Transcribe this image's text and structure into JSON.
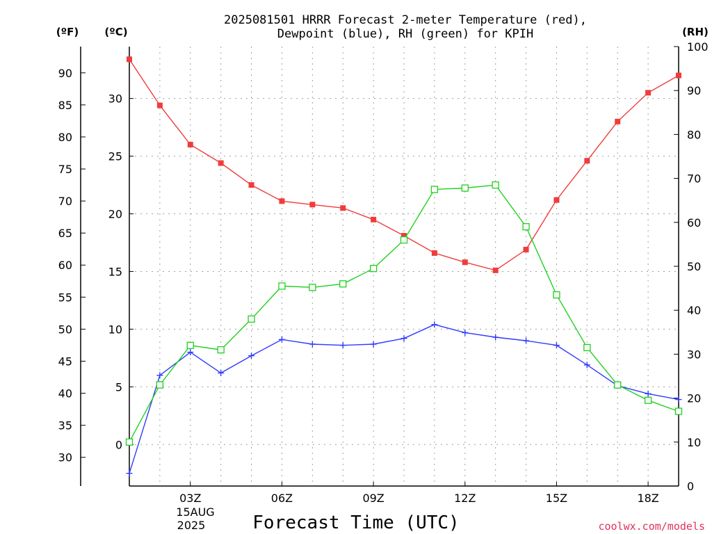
{
  "title": {
    "line1": "2025081501 HRRR Forecast 2-meter Temperature (red),",
    "line2": "Dewpoint (blue), RH (green) for KPIH"
  },
  "units": {
    "fahrenheit": "(ºF)",
    "celsius": "(ºC)",
    "rh": "(RH)"
  },
  "xlabel": "Forecast Time (UTC)",
  "date_label": {
    "day": "15AUG",
    "year": "2025"
  },
  "credit": "coolwx.com/models",
  "colors": {
    "temperature": "#f03c3c",
    "dewpoint": "#2f3bff",
    "rh": "#1fd01f",
    "axis": "#000000",
    "grid": "#a0a0a0"
  },
  "chart_data": {
    "type": "line",
    "x_hours": [
      1,
      2,
      3,
      4,
      5,
      6,
      7,
      8,
      9,
      10,
      11,
      12,
      13,
      14,
      15,
      16,
      17,
      18,
      19
    ],
    "xlim": [
      1,
      19
    ],
    "x_ticks": [
      {
        "hour": 3,
        "label": "03Z"
      },
      {
        "hour": 6,
        "label": "06Z"
      },
      {
        "hour": 9,
        "label": "09Z"
      },
      {
        "hour": 12,
        "label": "12Z"
      },
      {
        "hour": 15,
        "label": "15Z"
      },
      {
        "hour": 18,
        "label": "18Z"
      }
    ],
    "y_celsius": {
      "ylim": [
        -3.6,
        34.5
      ],
      "ticks": [
        0,
        5,
        10,
        15,
        20,
        25,
        30
      ]
    },
    "y_fahrenheit": {
      "ticks": [
        30,
        35,
        40,
        45,
        50,
        55,
        60,
        65,
        70,
        75,
        80,
        85,
        90
      ]
    },
    "y_rh": {
      "ylim": [
        0,
        100
      ],
      "ticks": [
        0,
        10,
        20,
        30,
        40,
        50,
        60,
        70,
        80,
        90,
        100
      ]
    },
    "grid": true,
    "series": [
      {
        "name": "Temperature",
        "axis": "celsius",
        "marker": "filled-square",
        "values": [
          33.4,
          29.4,
          26.0,
          24.4,
          22.5,
          21.1,
          20.8,
          20.5,
          19.5,
          18.1,
          16.6,
          15.8,
          15.1,
          16.9,
          21.2,
          24.6,
          28.0,
          30.5,
          32.0
        ]
      },
      {
        "name": "Dewpoint",
        "axis": "celsius",
        "marker": "plus",
        "values": [
          -2.5,
          6.0,
          8.0,
          6.2,
          7.7,
          9.1,
          8.7,
          8.6,
          8.7,
          9.2,
          10.4,
          9.7,
          9.3,
          9.0,
          8.6,
          6.9,
          5.1,
          4.4,
          3.9
        ]
      },
      {
        "name": "RH",
        "axis": "rh",
        "marker": "open-square",
        "values": [
          10,
          23,
          32,
          31,
          38,
          45.5,
          45.2,
          46,
          49.5,
          56,
          67.5,
          67.8,
          68.5,
          59,
          43.5,
          31.5,
          23,
          19.5,
          17
        ]
      }
    ]
  }
}
